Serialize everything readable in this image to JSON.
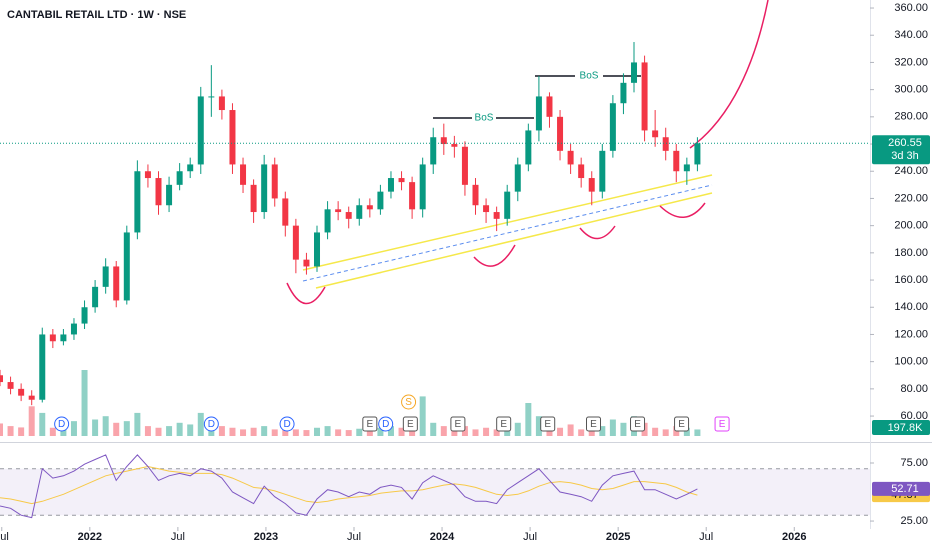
{
  "chart_data": {
    "type": "candlestick",
    "title": "CANTABIL RETAIL LTD · 1W · NSE",
    "x": [
      2021.49,
      2021.55,
      2021.61,
      2021.67,
      2021.73,
      2021.79,
      2021.85,
      2021.91,
      2021.97,
      2022.03,
      2022.09,
      2022.15,
      2022.21,
      2022.27,
      2022.33,
      2022.39,
      2022.45,
      2022.51,
      2022.57,
      2022.63,
      2022.69,
      2022.75,
      2022.81,
      2022.87,
      2022.93,
      2022.99,
      2023.05,
      2023.11,
      2023.17,
      2023.23,
      2023.29,
      2023.35,
      2023.41,
      2023.47,
      2023.53,
      2023.59,
      2023.65,
      2023.71,
      2023.77,
      2023.83,
      2023.89,
      2023.95,
      2024.01,
      2024.07,
      2024.13,
      2024.19,
      2024.25,
      2024.31,
      2024.37,
      2024.43,
      2024.49,
      2024.55,
      2024.61,
      2024.67,
      2024.73,
      2024.79,
      2024.85,
      2024.91,
      2024.97,
      2025.03,
      2025.09,
      2025.15,
      2025.21,
      2025.27,
      2025.33,
      2025.39,
      2025.45
    ],
    "open": [
      90,
      85,
      80,
      75,
      72,
      120,
      115,
      120,
      128,
      140,
      155,
      170,
      145,
      195,
      240,
      235,
      215,
      230,
      240,
      245,
      295,
      295,
      285,
      245,
      230,
      210,
      245,
      220,
      200,
      175,
      170,
      195,
      212,
      210,
      205,
      215,
      212,
      225,
      235,
      232,
      212,
      245,
      265,
      260,
      258,
      230,
      215,
      210,
      205,
      225,
      245,
      270,
      295,
      280,
      255,
      245,
      235,
      225,
      255,
      290,
      305,
      320,
      270,
      265,
      255,
      240,
      245
    ],
    "high": [
      94,
      89,
      84,
      79,
      125,
      124,
      124,
      132,
      145,
      160,
      176,
      174,
      200,
      248,
      245,
      240,
      236,
      246,
      250,
      302,
      318,
      300,
      290,
      250,
      234,
      252,
      250,
      225,
      205,
      180,
      200,
      218,
      218,
      214,
      220,
      220,
      230,
      240,
      240,
      236,
      250,
      272,
      275,
      266,
      262,
      235,
      220,
      214,
      230,
      250,
      275,
      310,
      298,
      285,
      260,
      250,
      240,
      260,
      296,
      312,
      335,
      325,
      285,
      272,
      260,
      250,
      265
    ],
    "low": [
      82,
      76,
      71,
      68,
      70,
      110,
      112,
      116,
      124,
      136,
      150,
      140,
      142,
      190,
      228,
      208,
      210,
      226,
      235,
      238,
      280,
      278,
      238,
      224,
      202,
      205,
      214,
      192,
      165,
      164,
      166,
      190,
      204,
      198,
      200,
      206,
      208,
      220,
      226,
      205,
      206,
      238,
      252,
      250,
      222,
      208,
      202,
      196,
      200,
      218,
      240,
      262,
      272,
      248,
      238,
      228,
      215,
      220,
      250,
      282,
      298,
      262,
      258,
      248,
      232,
      230,
      240
    ],
    "close": [
      85,
      80,
      75,
      72,
      120,
      115,
      120,
      128,
      140,
      155,
      170,
      145,
      195,
      240,
      235,
      215,
      230,
      240,
      245,
      295,
      295,
      285,
      245,
      230,
      210,
      245,
      220,
      200,
      175,
      170,
      195,
      212,
      210,
      205,
      215,
      212,
      225,
      235,
      232,
      212,
      245,
      265,
      260,
      258,
      230,
      215,
      210,
      205,
      225,
      245,
      270,
      295,
      280,
      255,
      245,
      235,
      225,
      255,
      290,
      305,
      320,
      270,
      265,
      255,
      240,
      245,
      260.55
    ],
    "up_color": "#089981",
    "down_color": "#f23645",
    "xlim": [
      2021.49,
      2026.43
    ],
    "xticks": [
      {
        "value": 2021.5,
        "label": "Jul"
      },
      2022,
      {
        "value": 2022.5,
        "label": "Jul"
      },
      2023,
      {
        "value": 2023.5,
        "label": "Jul"
      },
      2024,
      {
        "value": 2024.5,
        "label": "Jul"
      },
      2025,
      {
        "value": 2025.5,
        "label": "Jul"
      },
      2026
    ],
    "ylim": [
      42.4,
      365.9
    ],
    "yticks": [
      {
        "value": 60,
        "label": "60.00"
      },
      {
        "value": 80,
        "label": "80.00"
      },
      {
        "value": 100,
        "label": "100.00"
      },
      {
        "value": 120,
        "label": "120.00"
      },
      {
        "value": 140,
        "label": "140.00"
      },
      {
        "value": 160,
        "label": "160.00"
      },
      {
        "value": 180,
        "label": "180.00"
      },
      {
        "value": 200,
        "label": "200.00"
      },
      {
        "value": 220,
        "label": "220.00"
      },
      {
        "value": 240,
        "label": "240.00"
      },
      {
        "value": 260,
        "label": "260.00"
      },
      {
        "value": 280,
        "label": "280.00"
      },
      {
        "value": 300,
        "label": "300.00"
      },
      {
        "value": 320,
        "label": "320.00"
      },
      {
        "value": 340,
        "label": "340.00"
      },
      {
        "value": 360,
        "label": "360.00"
      }
    ],
    "countdown": "3d 3h",
    "volume": [
      380,
      300,
      260,
      900,
      700,
      250,
      300,
      450,
      2000,
      500,
      600,
      400,
      450,
      700,
      300,
      250,
      300,
      400,
      350,
      700,
      500,
      300,
      250,
      200,
      250,
      300,
      200,
      250,
      200,
      180,
      250,
      300,
      200,
      180,
      220,
      200,
      250,
      300,
      250,
      200,
      1200,
      400,
      300,
      250,
      300,
      200,
      250,
      200,
      300,
      400,
      1000,
      600,
      300,
      250,
      350,
      200,
      250,
      300,
      500,
      400,
      600,
      400,
      250,
      200,
      300,
      250,
      197.8
    ],
    "volume_value_label": "197.8K",
    "rsi": [
      38,
      36,
      30,
      28,
      70,
      62,
      64,
      68,
      74,
      78,
      82,
      60,
      72,
      82,
      72,
      60,
      64,
      66,
      64,
      70,
      68,
      62,
      50,
      45,
      40,
      55,
      46,
      40,
      32,
      30,
      44,
      52,
      50,
      46,
      50,
      48,
      54,
      56,
      54,
      44,
      58,
      64,
      60,
      56,
      46,
      42,
      42,
      40,
      52,
      58,
      64,
      70,
      60,
      50,
      48,
      46,
      42,
      56,
      64,
      66,
      68,
      52,
      52,
      48,
      44,
      48,
      52.71
    ],
    "rsi_ma": [
      45,
      44,
      42,
      40,
      42,
      45,
      48,
      52,
      56,
      60,
      64,
      66,
      68,
      70,
      72,
      70,
      68,
      67,
      66,
      66,
      66,
      65,
      62,
      58,
      54,
      53,
      51,
      48,
      45,
      42,
      41,
      42,
      44,
      45,
      46,
      47,
      49,
      50,
      51,
      51,
      52,
      54,
      56,
      57,
      56,
      54,
      51,
      48,
      47,
      48,
      51,
      55,
      58,
      59,
      58,
      56,
      53,
      52,
      53,
      56,
      59,
      59,
      58,
      57,
      54,
      50,
      47.37
    ],
    "rsi_color": "#7e57c2",
    "rsi_ma_color": "#f7c948",
    "rsi_ylim": [
      21.6,
      90.5
    ],
    "rsi_yticks": [
      {
        "value": 75,
        "label": "75.00"
      },
      {
        "value": 25,
        "label": "25.00"
      }
    ],
    "rsi_bands": [
      30,
      70
    ],
    "events": [
      {
        "x": 2021.84,
        "label": "D",
        "color": "#2962ff"
      },
      {
        "x": 2022.69,
        "label": "D",
        "color": "#2962ff"
      },
      {
        "x": 2023.12,
        "label": "D",
        "color": "#2962ff"
      },
      {
        "x": 2023.59,
        "label": "E",
        "color": "#555555"
      },
      {
        "x": 2023.68,
        "label": "D",
        "color": "#2962ff"
      },
      {
        "x": 2023.81,
        "label": "S",
        "color": "#f5a623"
      },
      {
        "x": 2023.82,
        "label": "E",
        "color": "#555555"
      },
      {
        "x": 2024.09,
        "label": "E",
        "color": "#555555"
      },
      {
        "x": 2024.35,
        "label": "E",
        "color": "#555555"
      },
      {
        "x": 2024.6,
        "label": "E",
        "color": "#555555"
      },
      {
        "x": 2024.86,
        "label": "E",
        "color": "#555555"
      },
      {
        "x": 2025.11,
        "label": "E",
        "color": "#555555"
      },
      {
        "x": 2025.36,
        "label": "E",
        "color": "#555555"
      },
      {
        "x": 2025.59,
        "label": "E",
        "color": "#e040fb"
      }
    ],
    "annotations": [
      "BoS",
      "BoS"
    ]
  }
}
